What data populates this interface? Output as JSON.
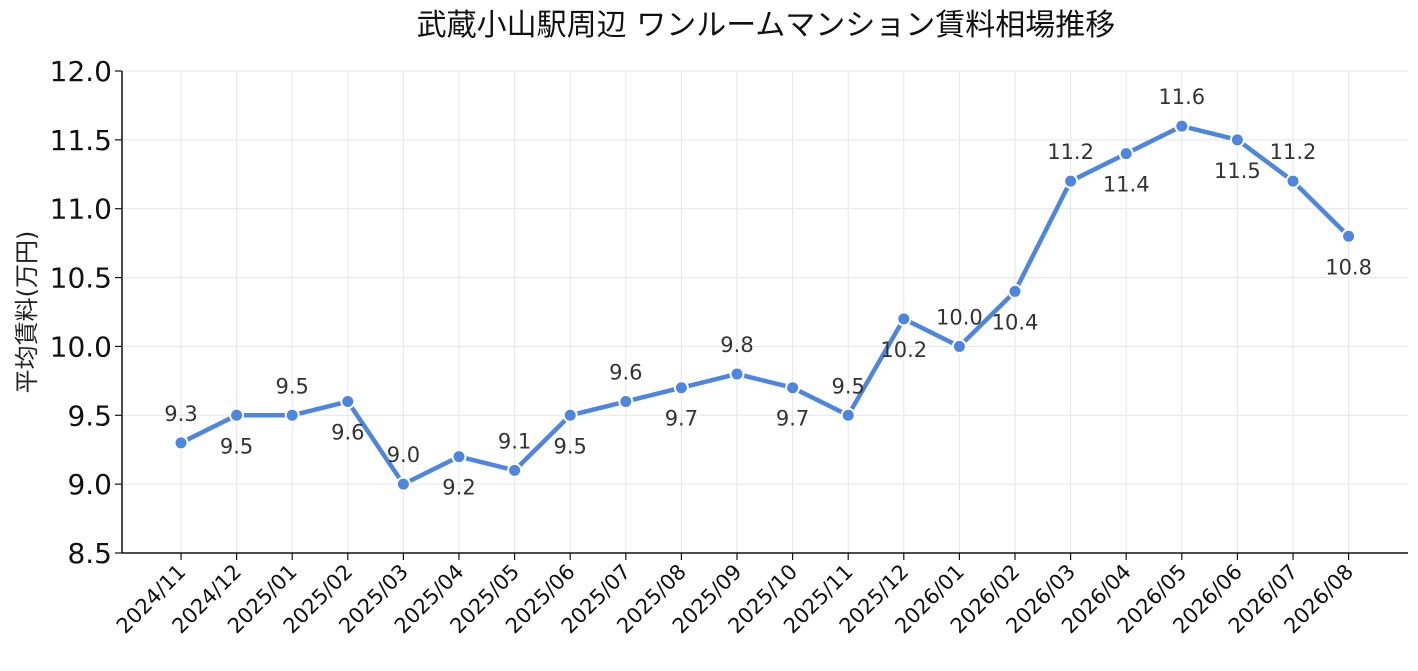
{
  "chart_data": {
    "type": "line",
    "title": "武蔵小山駅周辺 ワンルームマンション賃料相場推移",
    "xlabel": "",
    "ylabel": "平均賃料(万円)",
    "ylim": [
      8.5,
      12.0
    ],
    "yticks": [
      "8.5",
      "9.0",
      "9.5",
      "10.0",
      "10.5",
      "11.0",
      "11.5",
      "12.0"
    ],
    "grid": true,
    "line_color": "#4d86e0",
    "categories": [
      "2024/11",
      "2024/12",
      "2025/01",
      "2025/02",
      "2025/03",
      "2025/04",
      "2025/05",
      "2025/06",
      "2025/07",
      "2025/08",
      "2025/09",
      "2025/10",
      "2025/11",
      "2025/12",
      "2026/01",
      "2026/02",
      "2026/03",
      "2026/04",
      "2026/05",
      "2026/06",
      "2026/07",
      "2026/08"
    ],
    "series": [
      {
        "values": [
          9.3,
          9.5,
          9.5,
          9.6,
          9.0,
          9.2,
          9.1,
          9.5,
          9.6,
          9.7,
          9.8,
          9.7,
          9.5,
          10.2,
          10.0,
          10.4,
          11.2,
          11.4,
          11.6,
          11.5,
          11.2,
          10.8
        ],
        "labels": [
          "9.3",
          "9.5",
          "9.5",
          "9.6",
          "9.0",
          "9.2",
          "9.1",
          "9.5",
          "9.6",
          "9.7",
          "9.8",
          "9.7",
          "9.5",
          "10.2",
          "10.0",
          "10.4",
          "11.2",
          "11.4",
          "11.6",
          "11.5",
          "11.2",
          "10.8"
        ],
        "label_positions": [
          "above",
          "below",
          "above",
          "below",
          "above",
          "below",
          "above",
          "below",
          "above",
          "below",
          "above",
          "below",
          "above",
          "below",
          "above",
          "below",
          "above",
          "below",
          "above",
          "below",
          "above",
          "below"
        ]
      }
    ]
  }
}
